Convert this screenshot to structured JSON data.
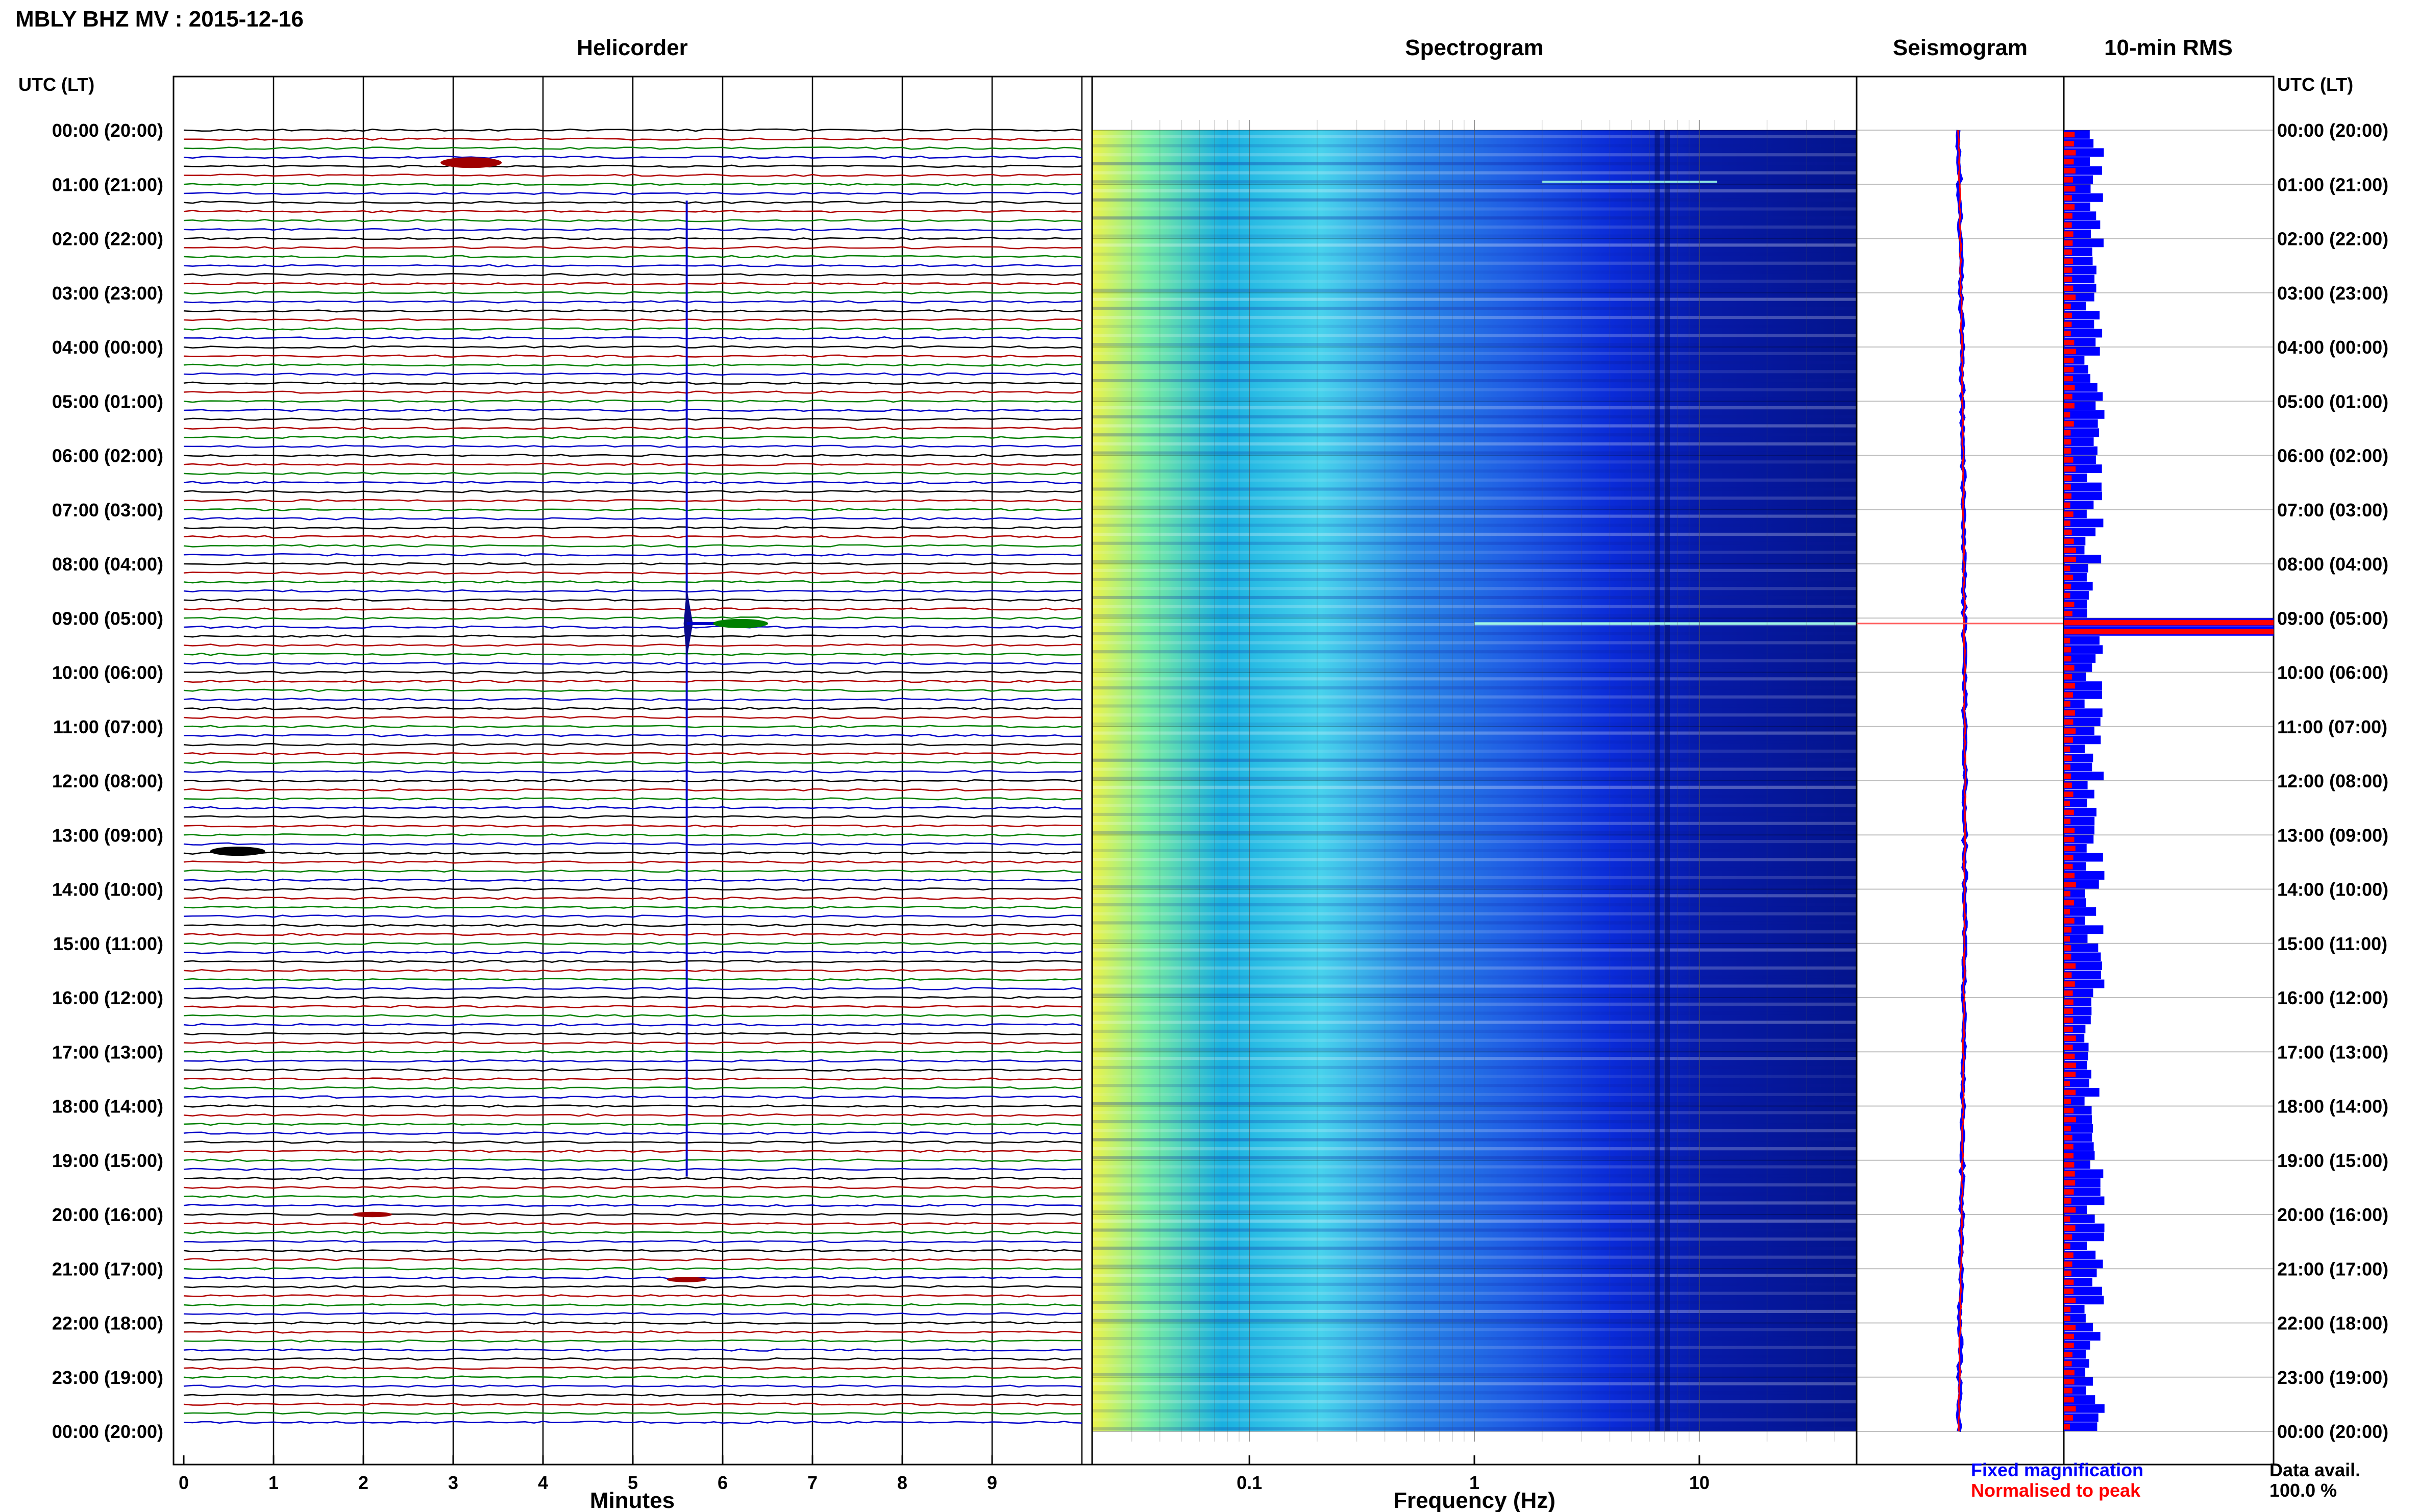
{
  "header": {
    "title": "MBLY BHZ MV : 2015-12-16",
    "utc_label_left": "UTC (LT)",
    "utc_label_right": "UTC (LT)"
  },
  "panels": {
    "helicorder": "Helicorder",
    "spectrogram": "Spectrogram",
    "seismogram": "Seismogram",
    "rms": "10-min RMS"
  },
  "time_labels": [
    "00:00 (20:00)",
    "01:00 (21:00)",
    "02:00 (22:00)",
    "03:00 (23:00)",
    "04:00 (00:00)",
    "05:00 (01:00)",
    "06:00 (02:00)",
    "07:00 (03:00)",
    "08:00 (04:00)",
    "09:00 (05:00)",
    "10:00 (06:00)",
    "11:00 (07:00)",
    "12:00 (08:00)",
    "13:00 (09:00)",
    "14:00 (10:00)",
    "15:00 (11:00)",
    "16:00 (12:00)",
    "17:00 (13:00)",
    "18:00 (14:00)",
    "19:00 (15:00)",
    "20:00 (16:00)",
    "21:00 (17:00)",
    "22:00 (18:00)",
    "23:00 (19:00)",
    "00:00 (20:00)"
  ],
  "footer": {
    "fixed_magnification": "Fixed magnification",
    "normalised_to_peak": "Normalised to peak",
    "data_avail_label": "Data avail.",
    "data_avail_value": "100.0 %"
  },
  "colors": {
    "trace_cycle": [
      "#000000",
      "#b00000",
      "#008000",
      "#0000c8"
    ],
    "fixed": "#0000ff",
    "normalised": "#ff0000"
  },
  "chart_data": [
    {
      "type": "line",
      "name": "helicorder",
      "xlabel": "Minutes",
      "x_ticks": [
        0,
        1,
        2,
        3,
        4,
        5,
        6,
        7,
        8,
        9
      ],
      "xlim": [
        0,
        10
      ],
      "rows_per_hour": 6,
      "rows": 144,
      "events": [
        {
          "hour": 0.6,
          "minute": 3.2,
          "amplitude": 0.5
        },
        {
          "hour": 9.1,
          "minute": 5.6,
          "amplitude": 10
        },
        {
          "hour": 9.1,
          "minute": 6.2,
          "amplitude": 0.4
        },
        {
          "hour": 13.3,
          "minute": 0.6,
          "amplitude": 0.4
        },
        {
          "hour": 20.0,
          "minute": 2.1,
          "amplitude": 0.15
        },
        {
          "hour": 21.2,
          "minute": 5.6,
          "amplitude": 0.15
        }
      ]
    },
    {
      "type": "heatmap",
      "name": "spectrogram",
      "xlabel": "Frequency (Hz)",
      "x_scale": "log",
      "xlim": [
        0.02,
        50
      ],
      "x_ticks": [
        0.1,
        1,
        10
      ],
      "x_tick_labels": [
        "0.1",
        "1",
        "10"
      ],
      "ylim_hours": [
        0,
        24
      ]
    },
    {
      "type": "line",
      "name": "seismogram",
      "ylim_hours": [
        0,
        24
      ]
    },
    {
      "type": "bar",
      "name": "10-min RMS",
      "interval_minutes": 10,
      "peak_hour": 9.1
    }
  ]
}
